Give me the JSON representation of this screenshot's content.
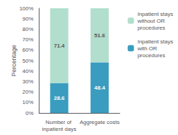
{
  "chart_data": {
    "type": "bar",
    "stacked": true,
    "data_labels": true,
    "grid": false,
    "legend": "upper right",
    "categories": [
      "Number of inpatient days",
      "Aggregate costs"
    ],
    "ylabel": "Percentage",
    "ylim": [
      0,
      100
    ],
    "yticks": [
      {
        "value": 0,
        "label": "0%"
      },
      {
        "value": 10,
        "label": "10%"
      },
      {
        "value": 20,
        "label": "20%"
      },
      {
        "value": 30,
        "label": "30%"
      },
      {
        "value": 40,
        "label": "40%"
      },
      {
        "value": 50,
        "label": "50%"
      },
      {
        "value": 60,
        "label": "60%"
      },
      {
        "value": 70,
        "label": "70%"
      },
      {
        "value": 80,
        "label": "80%"
      },
      {
        "value": 90,
        "label": "90%"
      },
      {
        "value": 100,
        "label": "100%"
      }
    ],
    "series": [
      {
        "name": "Inpatient stays\nwith OR\nprocedures",
        "color": "#3a9dbf",
        "values": [
          28.6,
          48.4
        ]
      },
      {
        "name": "Inpatient stays\nwithout OR\nprocedures",
        "color": "#b2dece",
        "values": [
          71.4,
          51.6
        ]
      }
    ]
  }
}
